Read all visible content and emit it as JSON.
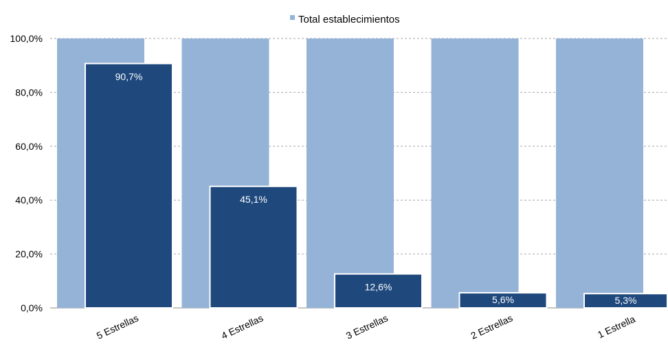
{
  "chart_data": {
    "type": "bar",
    "categories": [
      "5 Estrellas",
      "4 Estrellas",
      "3 Estrellas",
      "2 Estrellas",
      "1 Estrella"
    ],
    "series": [
      {
        "name": "Total establecimientos",
        "values": [
          100,
          100,
          100,
          100,
          100
        ],
        "color": "#95b3d7"
      },
      {
        "values": [
          90.7,
          45.1,
          12.6,
          5.6,
          5.3
        ],
        "labels": [
          "90,7%",
          "45,1%",
          "12,6%",
          "5,6%",
          "5,3%"
        ],
        "color": "#1f497d"
      }
    ],
    "ylim": [
      0,
      100
    ],
    "yticks": [
      0,
      20,
      40,
      60,
      80,
      100
    ],
    "ytick_labels": [
      "0,0%",
      "20,0%",
      "40,0%",
      "60,0%",
      "80,0%",
      "100,0%"
    ],
    "grid": "horizontal dashed",
    "legend": {
      "position": "top-center",
      "entries": [
        "Total establecimientos"
      ]
    },
    "title": "",
    "xlabel": "",
    "ylabel": ""
  }
}
